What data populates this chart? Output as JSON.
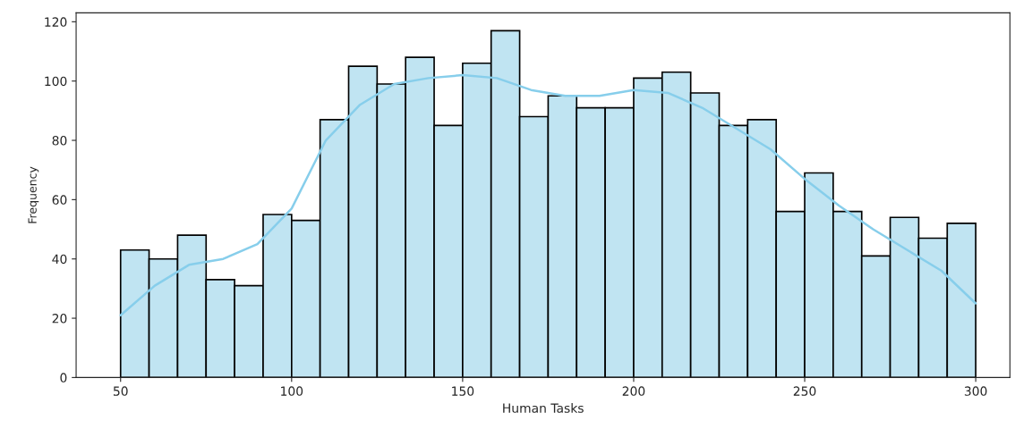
{
  "chart_data": {
    "type": "histogram",
    "xlabel": "Human Tasks",
    "ylabel": "Frequency",
    "xlim": [
      37,
      310
    ],
    "ylim": [
      0,
      123
    ],
    "xticks": [
      50,
      100,
      150,
      200,
      250,
      300
    ],
    "yticks": [
      0,
      20,
      40,
      60,
      80,
      100,
      120
    ],
    "grid": false,
    "legend": false,
    "series": [
      {
        "color": "#c0e4f2",
        "bins": [
          50,
          58.33,
          66.67,
          75,
          83.33,
          91.67,
          100,
          108.33,
          116.67,
          125,
          133.33,
          141.67,
          150,
          158.33,
          166.67,
          175,
          183.33,
          191.67,
          200,
          208.33,
          216.67,
          225,
          233.33,
          241.67,
          250,
          258.33,
          266.67,
          275,
          283.33,
          291.67,
          300
        ],
        "values": [
          43,
          40,
          48,
          33,
          31,
          55,
          53,
          87,
          105,
          99,
          108,
          85,
          106,
          117,
          88,
          95,
          91,
          91,
          101,
          103,
          96,
          85,
          87,
          56,
          69,
          56,
          41,
          54,
          47,
          52
        ]
      },
      {
        "type": "line",
        "color": "#87ceeb",
        "x": [
          50,
          60,
          70,
          80,
          90,
          100,
          110,
          120,
          130,
          140,
          150,
          160,
          170,
          180,
          190,
          200,
          210,
          220,
          230,
          240,
          250,
          260,
          270,
          280,
          290,
          300
        ],
        "values": [
          21,
          31,
          38,
          40,
          45,
          57,
          80,
          92,
          99,
          101,
          102,
          101,
          97,
          95,
          95,
          97,
          96,
          91,
          84,
          77,
          67,
          58,
          50,
          43,
          36,
          25
        ]
      }
    ]
  }
}
